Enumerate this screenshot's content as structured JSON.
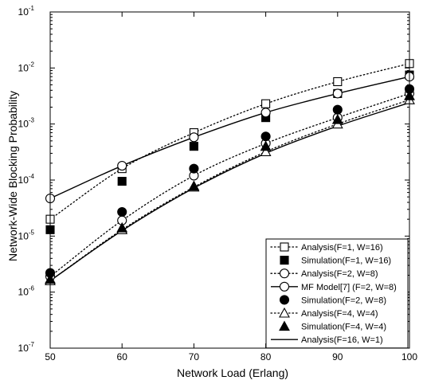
{
  "chart_data": {
    "type": "line",
    "xlabel": "Network Load (Erlang)",
    "ylabel": "Network-Wide Blocking Probability",
    "xlim": [
      50,
      100
    ],
    "ylim": [
      1e-07,
      0.1
    ],
    "yscale": "log",
    "xticks": [
      50,
      60,
      70,
      80,
      90,
      100
    ],
    "xtick_labels": [
      "50",
      "60",
      "70",
      "80",
      "90",
      "100"
    ],
    "yticks": [
      {
        "value": 1e-07,
        "base": "10",
        "exp": "-7"
      },
      {
        "value": 1e-06,
        "base": "10",
        "exp": "-6"
      },
      {
        "value": 1e-05,
        "base": "10",
        "exp": "-5"
      },
      {
        "value": 0.0001,
        "base": "10",
        "exp": "-4"
      },
      {
        "value": 0.001,
        "base": "10",
        "exp": "-3"
      },
      {
        "value": 0.01,
        "base": "10",
        "exp": "-2"
      },
      {
        "value": 0.1,
        "base": "10",
        "exp": "-1"
      }
    ],
    "legend_position": "bottom-right",
    "x": [
      50,
      60,
      70,
      80,
      90,
      100
    ],
    "series": [
      {
        "name": "Analysis(F=1, W=16)",
        "line": "dotted",
        "marker": "square-open",
        "values": [
          2e-05,
          0.00016,
          0.0007,
          0.0023,
          0.0057,
          0.012
        ]
      },
      {
        "name": "Simulation(F=1, W=16)",
        "line": "none",
        "marker": "square-filled",
        "values": [
          1.3e-05,
          9.5e-05,
          0.0004,
          0.0013,
          0.0035,
          0.0075
        ]
      },
      {
        "name": "Analysis(F=2, W=8)",
        "line": "dotted",
        "marker": "circle-open",
        "values": [
          1.9e-06,
          1.9e-05,
          0.00012,
          0.00045,
          0.0013,
          0.0035
        ]
      },
      {
        "name": "MF Model[7] (F=2, W=8)",
        "line": "solid",
        "marker": "circle-open",
        "values": [
          4.7e-05,
          0.00018,
          0.00058,
          0.0016,
          0.0035,
          0.007
        ]
      },
      {
        "name": "Simulation(F=2, W=8)",
        "line": "none",
        "marker": "circle-filled",
        "values": [
          2.2e-06,
          2.7e-05,
          0.00016,
          0.0006,
          0.0018,
          0.0042
        ]
      },
      {
        "name": "Analysis(F=4, W=4)",
        "line": "dotted",
        "marker": "triangle-open",
        "values": [
          1.6e-06,
          1.3e-05,
          7.5e-05,
          0.00032,
          0.001,
          0.0027
        ]
      },
      {
        "name": "Simulation(F=4, W=4)",
        "line": "none",
        "marker": "triangle-filled",
        "values": [
          1.7e-06,
          1.4e-05,
          7.8e-05,
          0.0004,
          0.0012,
          0.0032
        ]
      },
      {
        "name": "Analysis(F=16, W=1)",
        "line": "solid",
        "marker": "none",
        "values": [
          1.6e-06,
          1.25e-05,
          7.2e-05,
          0.0003,
          0.00092,
          0.0024
        ]
      }
    ]
  }
}
